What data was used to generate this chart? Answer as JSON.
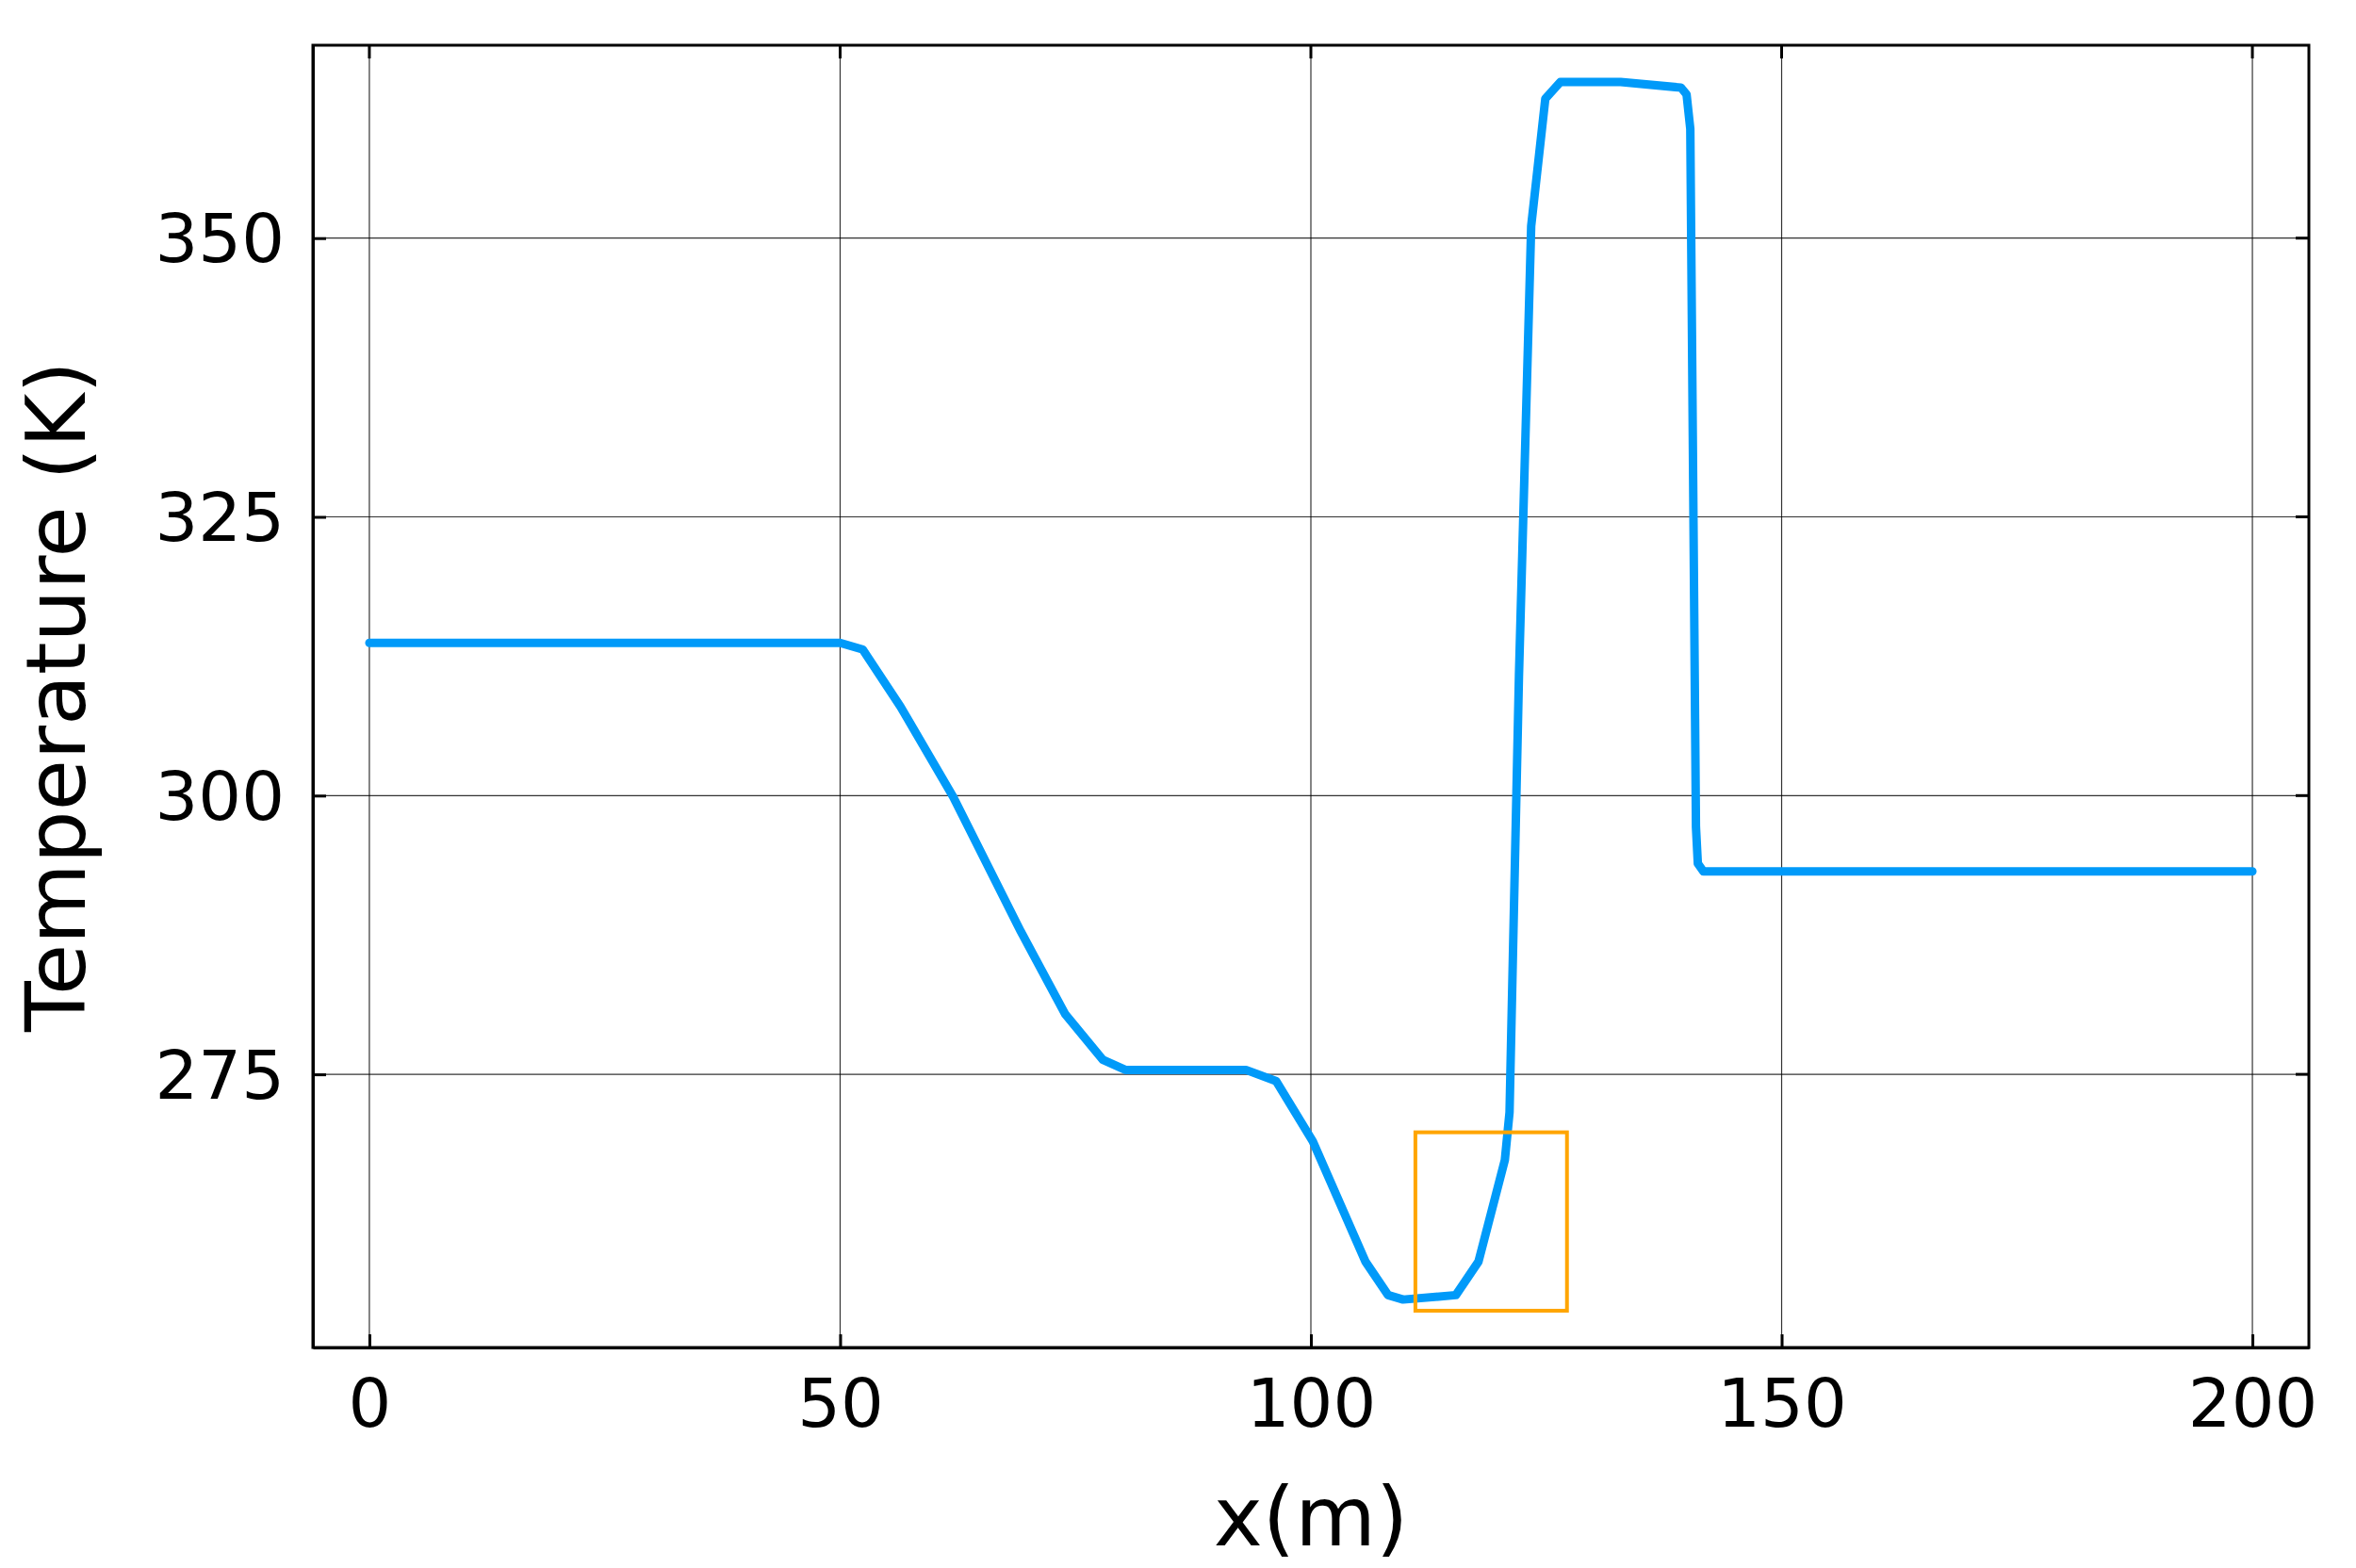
{
  "chart_data": {
    "type": "line",
    "xlabel": "x(m)",
    "ylabel": "Temperature (K)",
    "xlim": [
      -6,
      206
    ],
    "ylim": [
      250.5,
      367.3
    ],
    "xticks": [
      0,
      50,
      100,
      150,
      200
    ],
    "yticks": [
      275,
      300,
      325,
      350
    ],
    "grid": true,
    "series": [
      {
        "color": "#009af9",
        "x": [
          0,
          50,
          52.4,
          56.4,
          62,
          69.2,
          73.9,
          77.9,
          80.3,
          93.1,
          96.3,
          100.2,
          105.8,
          108.2,
          109.8,
          115.4,
          117.8,
          120.6,
          121.1,
          122.1,
          123.4,
          124.9,
          126.5,
          132.9,
          139.3,
          139.9,
          140.3,
          140.9,
          141.1,
          141.7,
          200
        ],
        "values": [
          313.7,
          313.7,
          313.1,
          308,
          299.9,
          287.8,
          280.4,
          276.3,
          275.4,
          275.4,
          274.4,
          269,
          258.2,
          255.2,
          254.8,
          255.2,
          258.2,
          267.3,
          271.6,
          310.7,
          351.1,
          362.5,
          364,
          364,
          363.5,
          362.9,
          359.8,
          297.2,
          293.9,
          293.2,
          293.2
        ]
      }
    ]
  }
}
